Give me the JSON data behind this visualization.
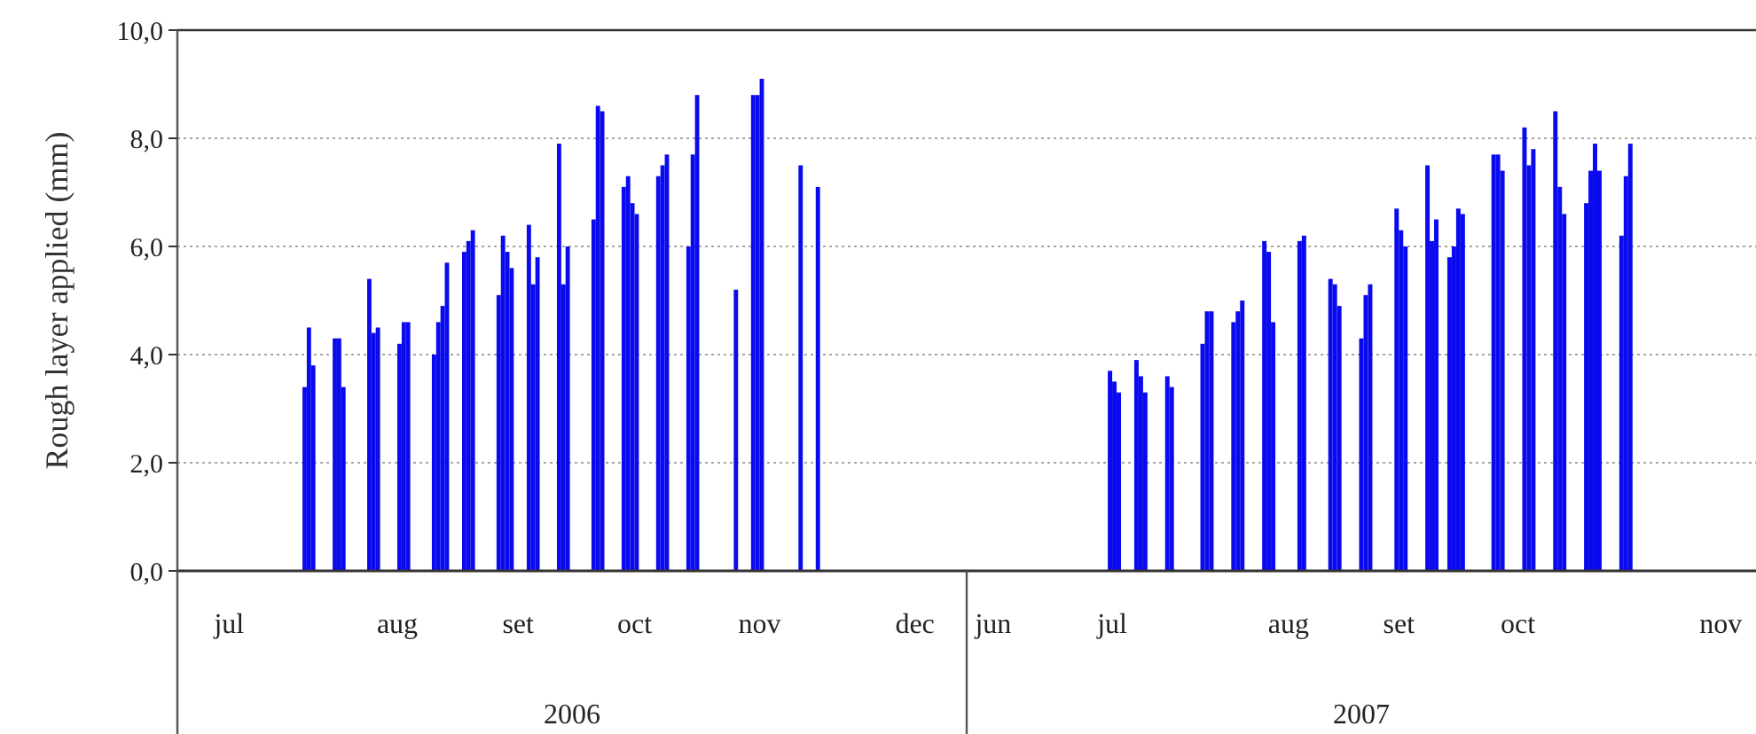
{
  "chart_data": [
    {
      "type": "bar",
      "ylabel": "Rough layer applied (mm)",
      "xlabel": "2006",
      "color": "#0a0aee",
      "grid": "y",
      "x": [
        "2006-08-02",
        "2006-08-03",
        "2006-08-04",
        "2006-08-09",
        "2006-08-10",
        "2006-08-11",
        "2006-08-17",
        "2006-08-18",
        "2006-08-19",
        "2006-08-24",
        "2006-08-25",
        "2006-08-26",
        "2006-09-01",
        "2006-09-02",
        "2006-09-03",
        "2006-09-04",
        "2006-09-08",
        "2006-09-09",
        "2006-09-10",
        "2006-09-16",
        "2006-09-17",
        "2006-09-18",
        "2006-09-19",
        "2006-09-23",
        "2006-09-24",
        "2006-09-25",
        "2006-09-30",
        "2006-10-01",
        "2006-10-02",
        "2006-10-08",
        "2006-10-09",
        "2006-10-10",
        "2006-10-15",
        "2006-10-16",
        "2006-10-17",
        "2006-10-18",
        "2006-10-23",
        "2006-10-24",
        "2006-10-25",
        "2006-10-30",
        "2006-10-31",
        "2006-11-01",
        "2006-11-10",
        "2006-11-14",
        "2006-11-15",
        "2006-11-16",
        "2006-11-25",
        "2006-11-29"
      ],
      "values": [
        3.4,
        4.5,
        3.8,
        4.3,
        4.3,
        3.4,
        5.4,
        4.4,
        4.5,
        4.2,
        4.6,
        4.6,
        4.0,
        4.6,
        4.9,
        5.7,
        5.9,
        6.1,
        6.3,
        5.1,
        6.2,
        5.9,
        5.6,
        6.4,
        5.3,
        5.8,
        7.9,
        5.3,
        6.0,
        6.5,
        8.6,
        8.5,
        7.1,
        7.3,
        6.8,
        6.6,
        7.3,
        7.5,
        7.7,
        6.0,
        7.7,
        8.8,
        5.2,
        8.8,
        8.8,
        9.1,
        7.5,
        7.1
      ],
      "xlim": [
        "2006-07-04",
        "2007-01-03"
      ],
      "xticks": [
        {
          "value": "2006-07-16",
          "label": "jul"
        },
        {
          "value": "2006-08-24",
          "label": "aug"
        },
        {
          "value": "2006-09-21",
          "label": "set"
        },
        {
          "value": "2006-10-18",
          "label": "oct"
        },
        {
          "value": "2006-11-16",
          "label": "nov"
        },
        {
          "value": "2006-12-22",
          "label": "dec"
        }
      ],
      "ylim": [
        0,
        10
      ],
      "yticks": [
        {
          "value": 0,
          "label": "0,0"
        },
        {
          "value": 2,
          "label": "2,0"
        },
        {
          "value": 4,
          "label": "4,0"
        },
        {
          "value": 6,
          "label": "6,0"
        },
        {
          "value": 8,
          "label": "8,0"
        },
        {
          "value": 10,
          "label": "10,0"
        }
      ]
    },
    {
      "type": "bar",
      "xlabel": "2007",
      "color": "#0a0aee",
      "grid": "y",
      "tick_labels": "x",
      "x": [
        "2007-07-14",
        "2007-07-15",
        "2007-07-16",
        "2007-07-20",
        "2007-07-21",
        "2007-07-22",
        "2007-07-27",
        "2007-07-28",
        "2007-08-04",
        "2007-08-05",
        "2007-08-06",
        "2007-08-11",
        "2007-08-12",
        "2007-08-13",
        "2007-08-18",
        "2007-08-19",
        "2007-08-20",
        "2007-08-26",
        "2007-08-27",
        "2007-09-02",
        "2007-09-03",
        "2007-09-04",
        "2007-09-09",
        "2007-09-10",
        "2007-09-11",
        "2007-09-17",
        "2007-09-18",
        "2007-09-19",
        "2007-09-24",
        "2007-09-25",
        "2007-09-26",
        "2007-09-29",
        "2007-09-30",
        "2007-10-01",
        "2007-10-02",
        "2007-10-09",
        "2007-10-10",
        "2007-10-11",
        "2007-10-16",
        "2007-10-17",
        "2007-10-18",
        "2007-10-23",
        "2007-10-24",
        "2007-10-25",
        "2007-10-30",
        "2007-10-31",
        "2007-11-01",
        "2007-11-02",
        "2007-11-07",
        "2007-11-08",
        "2007-11-09"
      ],
      "values": [
        3.7,
        3.5,
        3.3,
        3.9,
        3.6,
        3.3,
        3.6,
        3.4,
        4.2,
        4.8,
        4.8,
        4.6,
        4.8,
        5.0,
        6.1,
        5.9,
        4.6,
        6.1,
        6.2,
        5.4,
        5.3,
        4.9,
        4.3,
        5.1,
        5.3,
        6.7,
        6.3,
        6.0,
        7.5,
        6.1,
        6.5,
        5.8,
        6.0,
        6.7,
        6.6,
        7.7,
        7.7,
        7.4,
        8.2,
        7.5,
        7.8,
        8.5,
        7.1,
        6.6,
        6.8,
        7.4,
        7.9,
        7.4,
        6.2,
        7.3,
        7.9
      ],
      "xlim": [
        "2007-06-12",
        "2007-12-08"
      ],
      "xticks": [
        {
          "value": "2007-06-18",
          "label": "jun"
        },
        {
          "value": "2007-07-15",
          "label": "jul"
        },
        {
          "value": "2007-08-24",
          "label": "aug"
        },
        {
          "value": "2007-09-18",
          "label": "set"
        },
        {
          "value": "2007-10-15",
          "label": "oct"
        },
        {
          "value": "2007-11-30",
          "label": "nov"
        }
      ],
      "ylim": [
        0,
        10
      ],
      "yticks": [
        0,
        2,
        4,
        6,
        8,
        10
      ]
    }
  ]
}
